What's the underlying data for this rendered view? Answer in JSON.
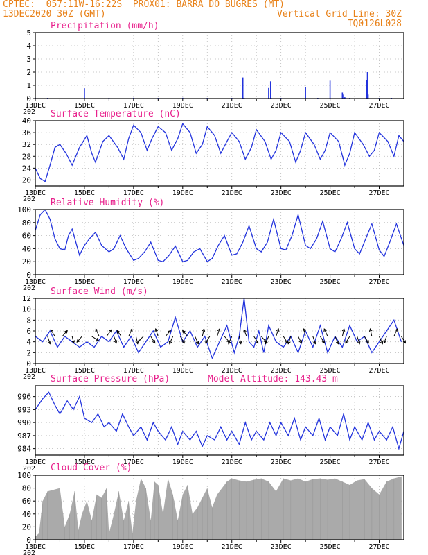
{
  "header": {
    "line1_left": "CPTEC:  057:11W-16:22S  PROX01: BARRA DO BUGRES (MT)",
    "line2_left": "13DEC2020 30Z (GMT)",
    "line2_right": "Vertical Grid Line: 30Z",
    "line3_right": "TQ0126L028"
  },
  "colors": {
    "header": "#e8821a",
    "title": "#e8208c",
    "series": "#2233dd",
    "cloud": "#aaaaaa",
    "wind_arrow": "#000000"
  },
  "x_axis": {
    "tick_labels": [
      "13DEC",
      "15DEC",
      "17DEC",
      "19DEC",
      "21DEC",
      "23DEC",
      "25DEC",
      "27DEC"
    ],
    "tick_days": [
      0,
      2,
      4,
      6,
      8,
      10,
      12,
      14
    ],
    "stub_label": "202",
    "range_days": [
      0,
      15
    ]
  },
  "chart_data": [
    {
      "type": "bar",
      "title": "Precipitation (mm/h)",
      "ylim": [
        0,
        5
      ],
      "yticks": [
        "0",
        "1",
        "2",
        "3",
        "4",
        "5"
      ],
      "grid": true,
      "x": [
        0.0,
        0.5,
        2.0,
        3.0,
        4.0,
        5.0,
        6.0,
        7.0,
        8.0,
        8.45,
        8.5,
        9.5,
        9.58,
        9.6,
        10.0,
        11.0,
        11.5,
        12.0,
        12.5,
        12.55,
        12.6,
        12.8,
        13.5,
        13.52,
        13.55,
        14.0,
        14.5
      ],
      "values": [
        0.06,
        0.05,
        0.78,
        0.05,
        0.06,
        0.05,
        0.06,
        0.05,
        0.05,
        1.6,
        0.05,
        0.8,
        1.3,
        0.05,
        0.05,
        0.85,
        0.05,
        1.35,
        0.45,
        0.3,
        0.1,
        0.05,
        1.4,
        2.0,
        0.3,
        0.05,
        0.05
      ]
    },
    {
      "type": "line",
      "title": "Surface Temperature (nC)",
      "ylim": [
        18,
        40
      ],
      "yticks": [
        "20",
        "24",
        "28",
        "32",
        "36",
        "40"
      ],
      "grid": true,
      "x": [
        0.0,
        0.2,
        0.4,
        0.6,
        0.8,
        1.0,
        1.25,
        1.5,
        1.8,
        2.1,
        2.3,
        2.45,
        2.75,
        3.0,
        3.35,
        3.6,
        3.8,
        4.0,
        4.3,
        4.55,
        4.75,
        5.0,
        5.3,
        5.55,
        5.8,
        6.0,
        6.3,
        6.55,
        6.8,
        7.0,
        7.3,
        7.55,
        7.8,
        8.0,
        8.3,
        8.55,
        8.8,
        9.0,
        9.35,
        9.6,
        9.8,
        10.0,
        10.35,
        10.6,
        10.8,
        11.0,
        11.35,
        11.6,
        11.8,
        12.0,
        12.35,
        12.6,
        12.8,
        13.0,
        13.35,
        13.6,
        13.8,
        14.0,
        14.35,
        14.6,
        14.8,
        15.0
      ],
      "values": [
        24,
        20.5,
        19.5,
        25,
        31,
        32,
        29,
        25,
        31,
        35,
        29,
        26,
        33,
        35,
        31,
        27,
        34,
        38.5,
        36,
        30,
        34,
        38,
        36,
        30,
        34,
        39,
        36,
        29,
        32,
        38,
        35,
        29,
        33,
        36,
        33,
        27,
        31,
        37,
        33,
        27,
        30,
        36,
        33,
        26,
        30,
        36,
        32,
        27,
        30,
        36,
        33,
        25,
        29,
        36,
        32,
        28,
        30,
        36,
        33,
        28,
        35,
        33
      ]
    },
    {
      "type": "line",
      "title": "Relative Humidity (%)",
      "ylim": [
        0,
        100
      ],
      "yticks": [
        "0",
        "20",
        "40",
        "60",
        "80",
        "100"
      ],
      "grid": true,
      "x": [
        0.0,
        0.2,
        0.4,
        0.6,
        0.8,
        1.0,
        1.2,
        1.35,
        1.5,
        1.8,
        2.0,
        2.2,
        2.45,
        2.7,
        3.0,
        3.2,
        3.45,
        3.7,
        4.0,
        4.2,
        4.45,
        4.7,
        5.0,
        5.2,
        5.45,
        5.7,
        6.0,
        6.2,
        6.45,
        6.7,
        7.0,
        7.2,
        7.45,
        7.7,
        8.0,
        8.2,
        8.45,
        8.7,
        9.0,
        9.2,
        9.45,
        9.7,
        10.0,
        10.2,
        10.45,
        10.7,
        11.0,
        11.2,
        11.45,
        11.7,
        12.0,
        12.2,
        12.45,
        12.7,
        13.0,
        13.2,
        13.45,
        13.7,
        14.0,
        14.2,
        14.45,
        14.7,
        15.0
      ],
      "values": [
        68,
        92,
        100,
        85,
        55,
        40,
        38,
        60,
        70,
        30,
        45,
        55,
        65,
        45,
        35,
        40,
        60,
        40,
        22,
        25,
        35,
        50,
        22,
        20,
        30,
        44,
        20,
        22,
        35,
        40,
        20,
        25,
        45,
        60,
        30,
        32,
        50,
        75,
        40,
        35,
        50,
        85,
        40,
        38,
        60,
        92,
        45,
        40,
        55,
        82,
        40,
        35,
        55,
        80,
        40,
        32,
        55,
        78,
        38,
        28,
        52,
        78,
        45
      ]
    },
    {
      "type": "line",
      "title": "Surface Wind (m/s)",
      "ylim": [
        0,
        12
      ],
      "yticks": [
        "0",
        "2",
        "4",
        "6",
        "8",
        "10",
        "12"
      ],
      "grid": true,
      "x": [
        0.0,
        0.3,
        0.6,
        0.9,
        1.2,
        1.5,
        1.8,
        2.1,
        2.4,
        2.7,
        3.0,
        3.3,
        3.6,
        3.9,
        4.2,
        4.5,
        4.8,
        5.1,
        5.4,
        5.7,
        6.0,
        6.3,
        6.6,
        6.9,
        7.2,
        7.5,
        7.8,
        8.1,
        8.3,
        8.5,
        8.7,
        8.9,
        9.1,
        9.3,
        9.5,
        9.8,
        10.1,
        10.4,
        10.7,
        11.0,
        11.3,
        11.6,
        11.9,
        12.2,
        12.5,
        12.8,
        13.1,
        13.4,
        13.7,
        14.0,
        14.3,
        14.6,
        14.9
      ],
      "values": [
        5,
        4,
        6,
        3,
        5,
        4,
        3,
        4,
        3,
        5,
        4,
        6,
        3,
        5,
        2,
        4,
        6,
        3,
        4,
        8.5,
        4,
        6,
        3,
        5,
        1,
        4,
        7,
        2,
        5,
        12,
        4,
        3,
        6,
        2,
        7,
        4,
        3,
        5,
        2,
        6,
        3,
        7,
        2,
        5,
        3,
        7,
        4,
        5,
        2,
        4,
        6,
        8,
        4
      ],
      "arrows": {
        "x": [
          0.5,
          0.8,
          1.1,
          1.5,
          1.9,
          2.3,
          2.6,
          2.9,
          3.2,
          3.5,
          3.8,
          4.1,
          4.4,
          4.7,
          5.0,
          5.3,
          5.6,
          5.9,
          6.2,
          6.5,
          6.8,
          7.1,
          7.4,
          7.7,
          8.0,
          8.3,
          8.6,
          8.9,
          9.2,
          9.5,
          9.8,
          10.1,
          10.4,
          10.7,
          11.0,
          11.3,
          11.6,
          11.9,
          12.2,
          12.5,
          12.8,
          13.1,
          13.4,
          13.7,
          14.0,
          14.3,
          14.6,
          14.9
        ],
        "u": [
          0.3,
          -0.5,
          0.6,
          0.2,
          -0.6,
          0.8,
          -0.4,
          0.6,
          0.3,
          -0.5,
          0.4,
          0.2,
          -0.6,
          0.5,
          -0.3,
          0.6,
          -0.4,
          0.5,
          -0.6,
          0.4,
          0.2,
          -0.5,
          0.3,
          0.6,
          -0.4,
          0.2,
          -0.3,
          0.5,
          0.6,
          -0.4,
          0.3,
          0.5,
          -0.3,
          0.4,
          -0.2,
          0.3,
          0.5,
          -0.4,
          0.4,
          0.2,
          -0.5,
          0.3,
          0.5,
          -0.2,
          0.4,
          -0.3,
          0.4,
          0.5
        ],
        "v": [
          -0.9,
          0.8,
          0.7,
          -0.8,
          -0.7,
          -0.5,
          0.9,
          0.8,
          -0.8,
          0.7,
          0.9,
          -0.9,
          -0.6,
          -0.8,
          0.9,
          0.7,
          -0.9,
          -0.8,
          0.7,
          -0.9,
          0.9,
          -0.8,
          0.9,
          -0.7,
          -0.9,
          -0.9,
          0.8,
          -0.8,
          -0.7,
          -0.9,
          0.9,
          -0.8,
          -0.9,
          -0.8,
          0.9,
          -0.9,
          -0.8,
          0.9,
          -0.9,
          0.9,
          -0.8,
          -0.9,
          -0.8,
          0.9,
          -0.9,
          -0.8,
          0.9,
          -0.8
        ]
      }
    },
    {
      "type": "line",
      "title": "Surface Pressure (hPa)",
      "annotation": "Model Altitude: 143.43 m",
      "ylim": [
        982.5,
        998.5
      ],
      "yticks": [
        "984",
        "987",
        "990",
        "993",
        "996"
      ],
      "grid": true,
      "x": [
        0.0,
        0.3,
        0.55,
        0.8,
        1.0,
        1.3,
        1.55,
        1.8,
        2.0,
        2.3,
        2.55,
        2.8,
        3.0,
        3.3,
        3.55,
        3.8,
        4.0,
        4.3,
        4.55,
        4.8,
        5.0,
        5.3,
        5.55,
        5.8,
        6.0,
        6.3,
        6.55,
        6.8,
        7.0,
        7.3,
        7.55,
        7.8,
        8.0,
        8.3,
        8.55,
        8.8,
        9.0,
        9.3,
        9.55,
        9.8,
        10.0,
        10.3,
        10.55,
        10.8,
        11.0,
        11.3,
        11.55,
        11.8,
        12.0,
        12.3,
        12.55,
        12.8,
        13.0,
        13.3,
        13.55,
        13.8,
        14.0,
        14.3,
        14.55,
        14.8,
        15.0
      ],
      "values": [
        993,
        995.5,
        997,
        994,
        992,
        995,
        993,
        996,
        991,
        990,
        992,
        989,
        990,
        988,
        992,
        989,
        987,
        989,
        986,
        990,
        988,
        986,
        989,
        985,
        988,
        986,
        988,
        984.5,
        987,
        986,
        989,
        986,
        988,
        985,
        990,
        986,
        988,
        986,
        990,
        987,
        990,
        987,
        991,
        986,
        989,
        987,
        991,
        986,
        989,
        987,
        992,
        986,
        989,
        986,
        990,
        986,
        988,
        986,
        989,
        984,
        988
      ]
    },
    {
      "type": "area",
      "title": "Cloud Cover (%)",
      "ylim": [
        0,
        100
      ],
      "yticks": [
        "0",
        "20",
        "40",
        "60",
        "80",
        "100"
      ],
      "grid": true,
      "x": [
        0.0,
        0.15,
        0.3,
        0.5,
        0.8,
        1.0,
        1.2,
        1.4,
        1.6,
        1.75,
        1.9,
        2.1,
        2.3,
        2.5,
        2.7,
        2.9,
        3.0,
        3.2,
        3.4,
        3.6,
        3.8,
        3.95,
        4.1,
        4.3,
        4.5,
        4.7,
        4.85,
        5.0,
        5.2,
        5.4,
        5.6,
        5.8,
        6.0,
        6.2,
        6.4,
        6.6,
        6.8,
        7.0,
        7.2,
        7.4,
        7.6,
        7.8,
        8.0,
        8.3,
        8.6,
        8.9,
        9.2,
        9.5,
        9.8,
        10.1,
        10.4,
        10.7,
        11.0,
        11.3,
        11.6,
        11.9,
        12.2,
        12.5,
        12.8,
        13.1,
        13.4,
        13.7,
        14.0,
        14.3,
        14.6,
        14.9
      ],
      "values": [
        5,
        10,
        60,
        75,
        78,
        80,
        20,
        40,
        75,
        15,
        40,
        60,
        30,
        70,
        65,
        80,
        10,
        40,
        75,
        30,
        60,
        10,
        60,
        95,
        80,
        30,
        90,
        85,
        40,
        95,
        70,
        30,
        70,
        85,
        40,
        50,
        65,
        80,
        50,
        70,
        80,
        90,
        95,
        92,
        90,
        93,
        95,
        90,
        75,
        95,
        92,
        95,
        90,
        94,
        95,
        93,
        95,
        90,
        85,
        92,
        94,
        80,
        70,
        90,
        95,
        98
      ]
    }
  ]
}
